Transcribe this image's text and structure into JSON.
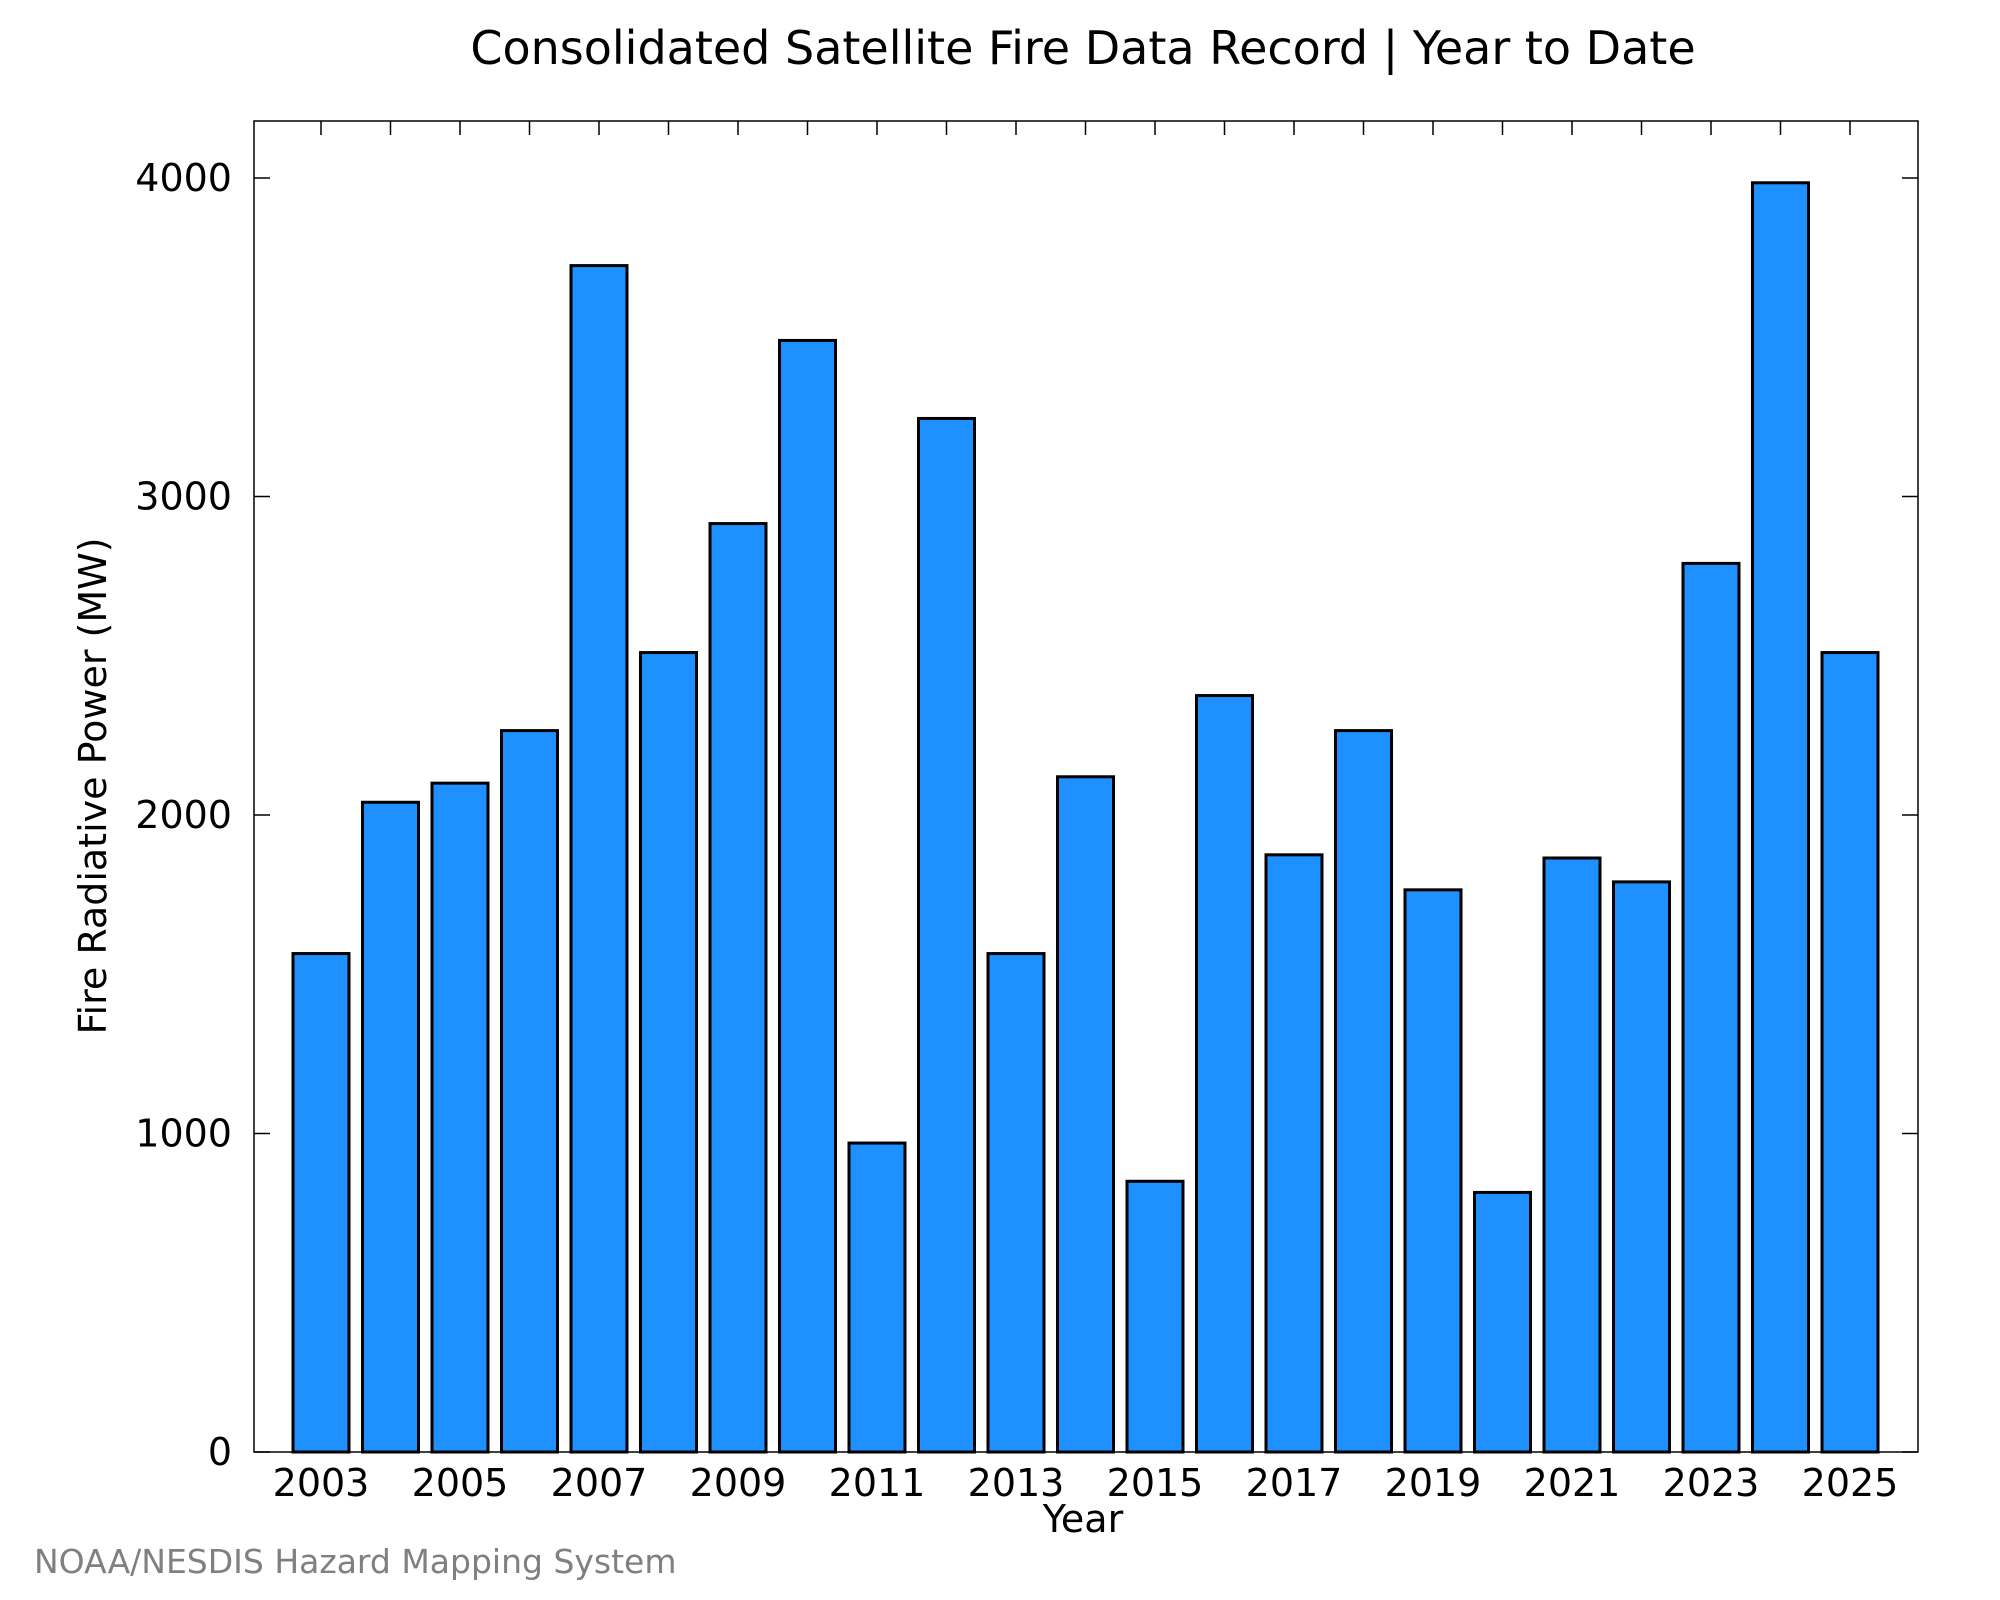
{
  "chart_data": {
    "type": "bar",
    "title": "Consolidated Satellite Fire Data Record | Year to Date",
    "xlabel": "Year",
    "ylabel": "Fire Radiative Power (MW)",
    "categories": [
      "2003",
      "2004",
      "2005",
      "2006",
      "2007",
      "2008",
      "2009",
      "2010",
      "2011",
      "2012",
      "2013",
      "2014",
      "2015",
      "2016",
      "2017",
      "2018",
      "2019",
      "2020",
      "2021",
      "2022",
      "2023",
      "2024",
      "2025"
    ],
    "values": [
      1565,
      2040,
      2100,
      2265,
      3725,
      2510,
      2915,
      3490,
      970,
      3245,
      1565,
      2120,
      850,
      2375,
      1875,
      2265,
      1765,
      815,
      1865,
      1790,
      2790,
      3985,
      2510
    ],
    "x_tick_labels": [
      "2003",
      "2005",
      "2007",
      "2009",
      "2011",
      "2013",
      "2015",
      "2017",
      "2019",
      "2021",
      "2023",
      "2025"
    ],
    "y_ticks": [
      0,
      1000,
      2000,
      3000,
      4000
    ],
    "ylim": [
      0,
      4180
    ],
    "grid": false,
    "legend": "none",
    "bar_color": "#1e90ff",
    "edge_color": "#000000"
  },
  "credit": "NOAA/NESDIS Hazard Mapping System"
}
